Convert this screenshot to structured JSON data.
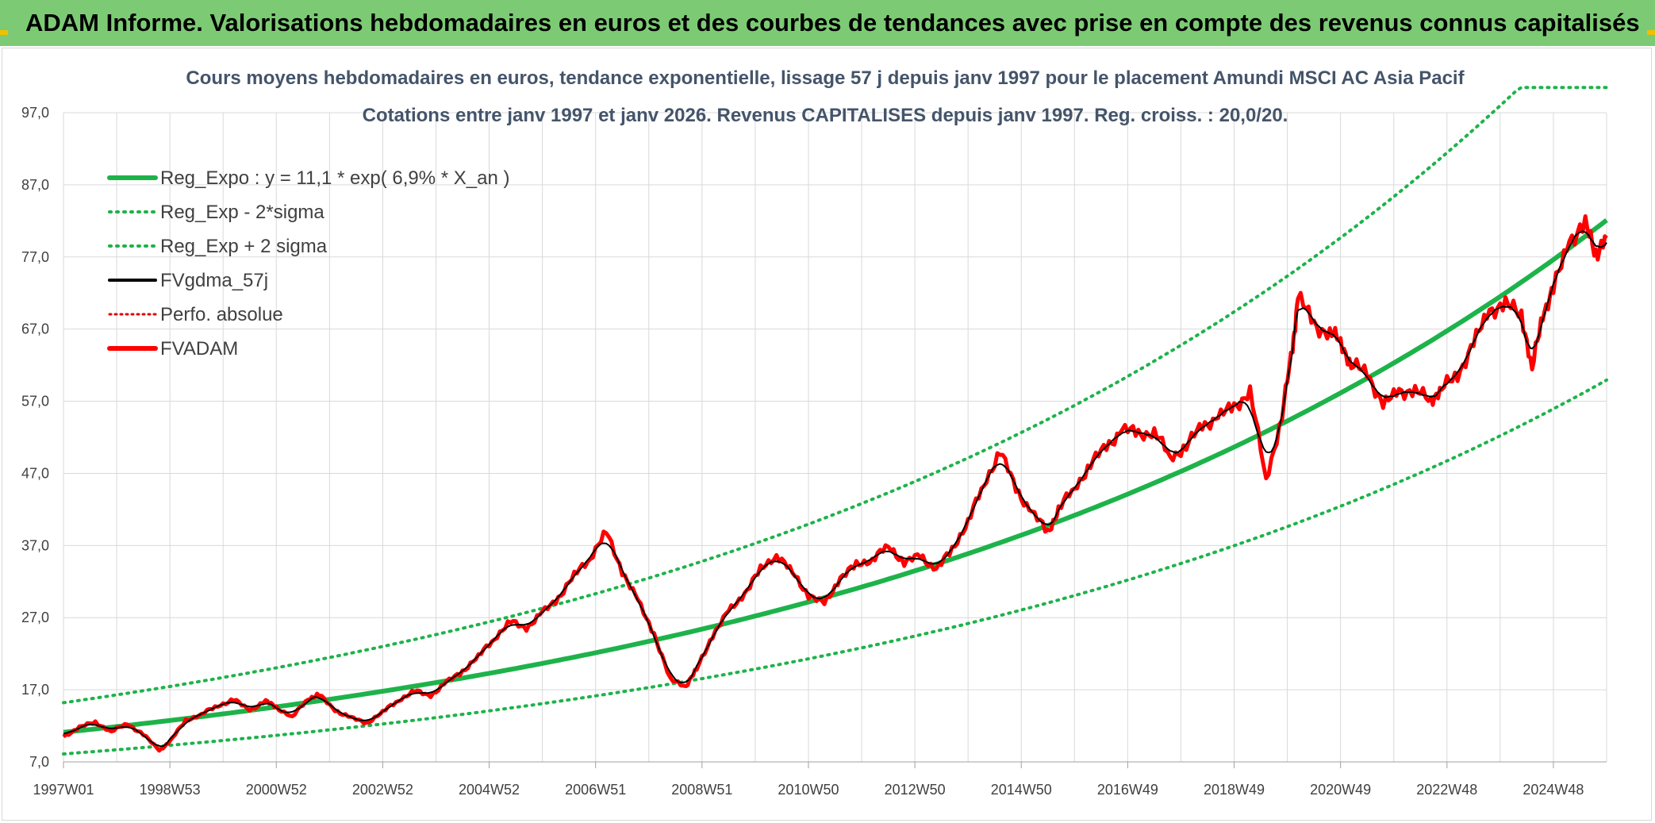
{
  "header": {
    "title": "ADAM Informe. Valorisations hebdomadaires en euros et des courbes de tendances avec prise en compte des revenus connus capitalisés"
  },
  "colors": {
    "banner": "#7ccb74",
    "reg_expo": "#1db34a",
    "sigma": "#1db34a",
    "fvgdma": "#000000",
    "perfo": "#e00000",
    "fvadam": "#ff0000",
    "grid": "#d9d9d9",
    "title": "#44546a"
  },
  "chart_data": {
    "type": "line",
    "title": "Cours moyens hebdomadaires en euros, tendance exponentielle, lissage 57 j depuis janv 1997 pour le placement Amundi MSCI AC Asia Pacif",
    "subtitle": "Cotations entre janv 1997 et janv 2026. Revenus CAPITALISES depuis janv 1997. Reg. croiss. : 20,0/20.",
    "xlabel": "",
    "ylabel": "",
    "xlim": [
      1997.0,
      2026.0
    ],
    "ylim": [
      7.0,
      97.0
    ],
    "y_ticks": [
      "7,0",
      "17,0",
      "27,0",
      "37,0",
      "47,0",
      "57,0",
      "67,0",
      "77,0",
      "87,0",
      "97,0"
    ],
    "x_ticks": [
      "1997W01",
      "1998W53",
      "2000W52",
      "2002W52",
      "2004W52",
      "2006W51",
      "2008W51",
      "2010W50",
      "2012W50",
      "2014W50",
      "2016W49",
      "2018W49",
      "2020W49",
      "2022W48",
      "2024W48"
    ],
    "legend_position": "top-left",
    "series": [
      {
        "name": "Reg_Expo : y = 11,1 * exp( 6,9% *  X_an )",
        "style": "solid-thick",
        "color": "#1db34a",
        "formula": {
          "a": 11.1,
          "b": 0.069
        },
        "x": [
          1997.0,
          2026.0
        ],
        "note": "exponential trend"
      },
      {
        "name": "Reg_Exp - 2*sigma",
        "style": "dotted",
        "color": "#1db34a",
        "factor": 0.73
      },
      {
        "name": "Reg_Exp + 2 sigma",
        "style": "dotted",
        "color": "#1db34a",
        "factor": 1.37,
        "cap": 100.5
      },
      {
        "name": "FVgdma_57j",
        "style": "solid",
        "color": "#000000"
      },
      {
        "name": "Perfo. absolue",
        "style": "dotted",
        "color": "#e00000"
      },
      {
        "name": "FVADAM",
        "style": "solid-thick",
        "color": "#ff0000",
        "x": [
          1997.0,
          1997.3,
          1997.6,
          1997.9,
          1998.2,
          1998.5,
          1998.8,
          1999.0,
          1999.3,
          1999.6,
          1999.9,
          2000.2,
          2000.5,
          2000.8,
          2001.0,
          2001.3,
          2001.6,
          2001.8,
          2002.1,
          2002.4,
          2002.7,
          2003.0,
          2003.3,
          2003.6,
          2003.9,
          2004.2,
          2004.5,
          2004.8,
          2005.1,
          2005.4,
          2005.7,
          2006.0,
          2006.3,
          2006.6,
          2006.9,
          2007.2,
          2007.5,
          2007.8,
          2008.1,
          2008.4,
          2008.7,
          2008.9,
          2009.2,
          2009.5,
          2009.8,
          2010.1,
          2010.4,
          2010.7,
          2011.0,
          2011.3,
          2011.6,
          2011.9,
          2012.2,
          2012.5,
          2012.8,
          2013.1,
          2013.4,
          2013.7,
          2014.0,
          2014.3,
          2014.6,
          2014.9,
          2015.2,
          2015.5,
          2015.7,
          2016.0,
          2016.3,
          2016.6,
          2016.9,
          2017.2,
          2017.5,
          2017.8,
          2018.1,
          2018.4,
          2018.7,
          2019.0,
          2019.3,
          2019.6,
          2019.9,
          2020.1,
          2020.2,
          2020.5,
          2020.8,
          2021.0,
          2021.2,
          2021.5,
          2021.8,
          2022.1,
          2022.4,
          2022.7,
          2022.9,
          2023.2,
          2023.5,
          2023.8,
          2024.1,
          2024.4,
          2024.6,
          2024.8,
          2025.0,
          2025.3,
          2025.6,
          2025.8,
          2026.0
        ],
        "values": [
          10.5,
          11.8,
          12.5,
          11.2,
          12.3,
          10.8,
          8.6,
          9.8,
          12.8,
          13.6,
          14.8,
          15.6,
          14.2,
          15.4,
          14.6,
          13.2,
          15.8,
          16.3,
          14.2,
          13.1,
          12.4,
          13.9,
          15.6,
          16.8,
          16.2,
          18.0,
          19.6,
          21.6,
          24.2,
          26.4,
          25.6,
          27.6,
          29.8,
          32.8,
          35.4,
          38.8,
          33.5,
          29.2,
          24.8,
          18.4,
          17.6,
          19.8,
          24.6,
          27.8,
          30.4,
          33.6,
          35.8,
          33.2,
          30.2,
          28.8,
          32.6,
          34.2,
          35.2,
          36.8,
          34.8,
          35.4,
          33.8,
          36.2,
          40.6,
          45.2,
          50.4,
          44.6,
          41.8,
          38.6,
          42.2,
          44.8,
          48.4,
          50.6,
          53.2,
          52.4,
          52.8,
          49.2,
          50.8,
          53.6,
          54.8,
          56.2,
          58.4,
          46.2,
          54.8,
          64.6,
          71.4,
          67.8,
          66.2,
          65.6,
          61.8,
          61.2,
          56.2,
          58.6,
          58.2,
          57.4,
          58.6,
          60.8,
          64.8,
          69.8,
          70.2,
          69.4,
          61.2,
          69.4,
          72.2,
          79.6,
          81.2,
          77.8,
          79.6
        ]
      }
    ]
  }
}
